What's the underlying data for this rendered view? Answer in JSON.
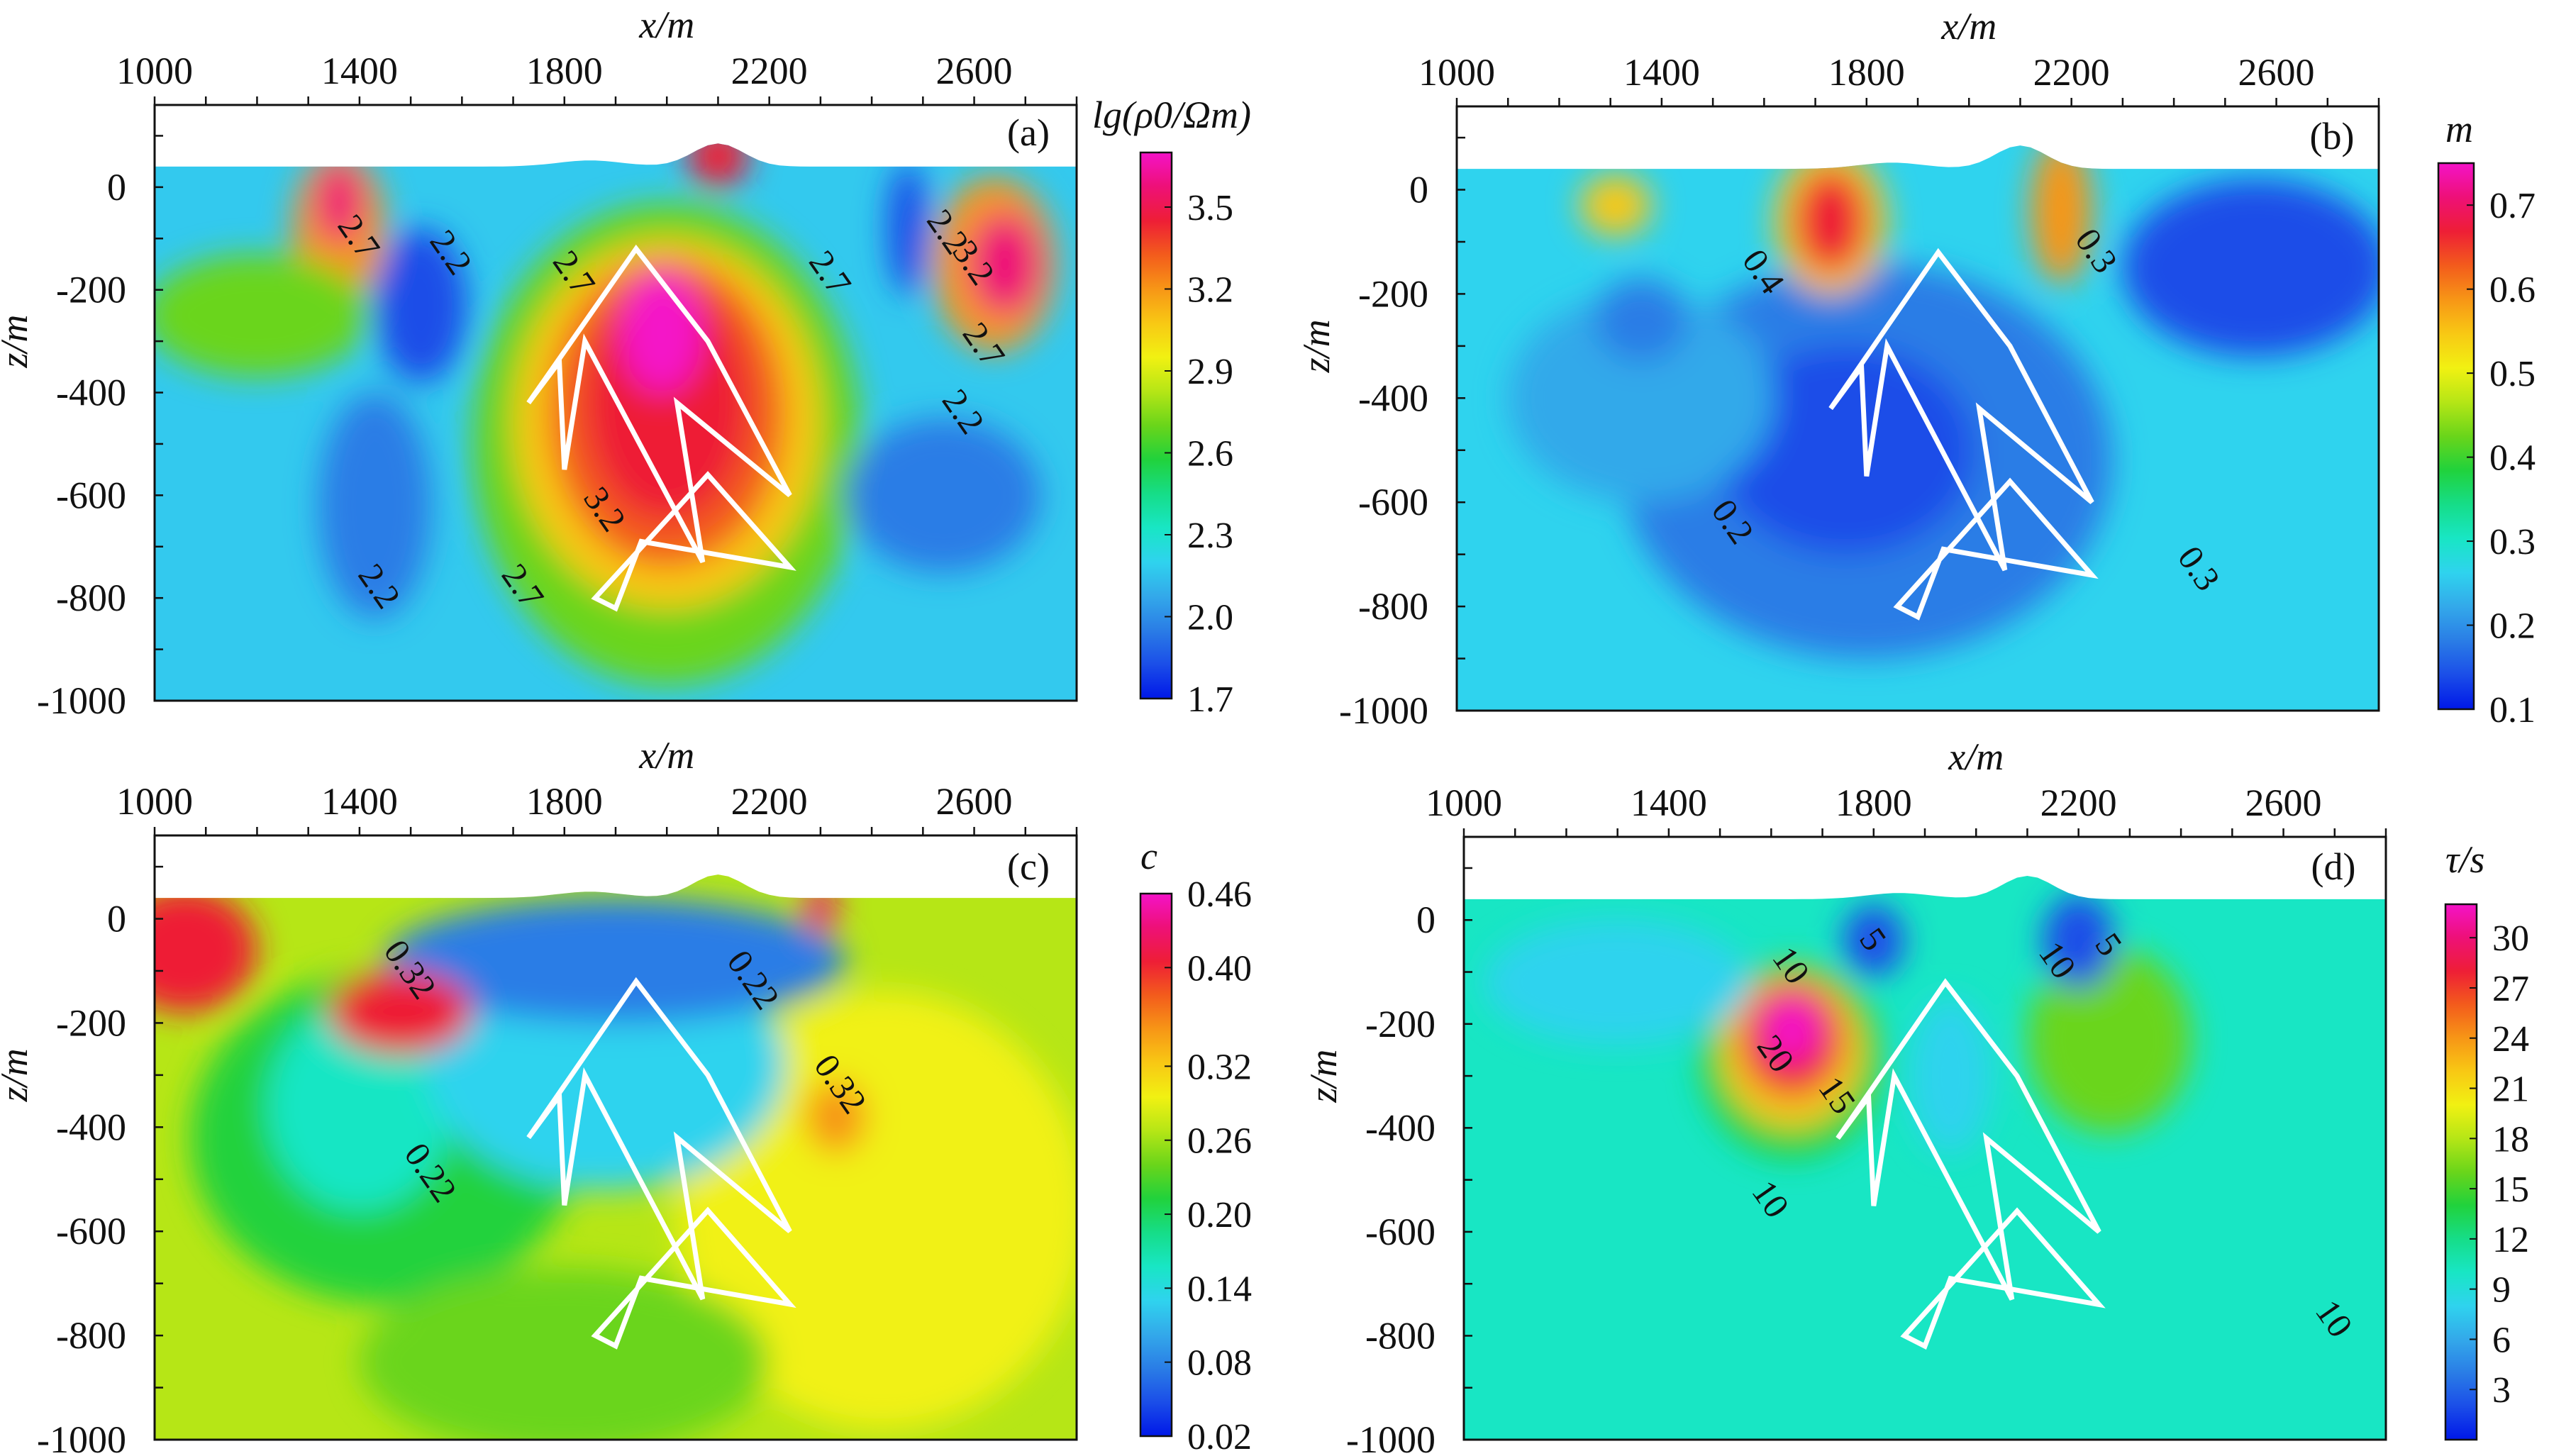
{
  "chart_data": [
    {
      "type": "heatmap",
      "panel": "(a)",
      "xlabel": "x/m",
      "ylabel": "z/m",
      "x_ticks": [
        "1000",
        "1400",
        "1800",
        "2200",
        "2600"
      ],
      "y_ticks": [
        "0",
        "-200",
        "-400",
        "-600",
        "-800",
        "-1000"
      ],
      "xlim": [
        1000,
        2800
      ],
      "ylim": [
        -1000,
        160
      ],
      "colorbar_title": "lg(ρ0/Ωm)",
      "colorbar_ticks": [
        "3.5",
        "3.2",
        "2.9",
        "2.6",
        "2.3",
        "2.0",
        "1.7"
      ],
      "colorbar_range": [
        1.7,
        3.7
      ],
      "contour_labels": [
        {
          "text": "2.7",
          "x": 1380,
          "z": -110
        },
        {
          "text": "2.2",
          "x": 1560,
          "z": -140
        },
        {
          "text": "2.7",
          "x": 1800,
          "z": -180
        },
        {
          "text": "2.7",
          "x": 2300,
          "z": -180
        },
        {
          "text": "2.2",
          "x": 2530,
          "z": -100
        },
        {
          "text": "3.2",
          "x": 2580,
          "z": -160
        },
        {
          "text": "2.7",
          "x": 2600,
          "z": -320
        },
        {
          "text": "2.2",
          "x": 2560,
          "z": -450
        },
        {
          "text": "3.2",
          "x": 1860,
          "z": -640
        },
        {
          "text": "2.7",
          "x": 1700,
          "z": -790
        },
        {
          "text": "2.2",
          "x": 1420,
          "z": -790
        }
      ]
    },
    {
      "type": "heatmap",
      "panel": "(b)",
      "xlabel": "x/m",
      "ylabel": "z/m",
      "x_ticks": [
        "1000",
        "1400",
        "1800",
        "2200",
        "2600"
      ],
      "y_ticks": [
        "0",
        "-200",
        "-400",
        "-600",
        "-800",
        "-1000"
      ],
      "xlim": [
        1000,
        2800
      ],
      "ylim": [
        -1000,
        160
      ],
      "colorbar_title": "m",
      "colorbar_ticks": [
        "0.7",
        "0.6",
        "0.5",
        "0.4",
        "0.3",
        "0.2",
        "0.1"
      ],
      "colorbar_range": [
        0.1,
        0.75
      ],
      "contour_labels": [
        {
          "text": "0.4",
          "x": 1580,
          "z": -170
        },
        {
          "text": "0.3",
          "x": 2230,
          "z": -130
        },
        {
          "text": "0.2",
          "x": 1520,
          "z": -650
        },
        {
          "text": "0.3",
          "x": 2430,
          "z": -740
        }
      ]
    },
    {
      "type": "heatmap",
      "panel": "(c)",
      "xlabel": "x/m",
      "ylabel": "z/m",
      "x_ticks": [
        "1000",
        "1400",
        "1800",
        "2200",
        "2600"
      ],
      "y_ticks": [
        "0",
        "-200",
        "-400",
        "-600",
        "-800",
        "-1000"
      ],
      "xlim": [
        1000,
        2800
      ],
      "ylim": [
        -1000,
        160
      ],
      "colorbar_title": "c",
      "colorbar_ticks": [
        "0.46",
        "0.40",
        "0.32",
        "0.26",
        "0.20",
        "0.14",
        "0.08",
        "0.02"
      ],
      "colorbar_range": [
        0.02,
        0.46
      ],
      "contour_labels": [
        {
          "text": "0.32",
          "x": 1480,
          "z": -110
        },
        {
          "text": "0.22",
          "x": 2150,
          "z": -130
        },
        {
          "text": "0.32",
          "x": 2320,
          "z": -330
        },
        {
          "text": "0.22",
          "x": 1520,
          "z": -500
        }
      ]
    },
    {
      "type": "heatmap",
      "panel": "(d)",
      "xlabel": "x/m",
      "ylabel": "z/m",
      "x_ticks": [
        "1000",
        "1400",
        "1800",
        "2200",
        "2600"
      ],
      "y_ticks": [
        "0",
        "-200",
        "-400",
        "-600",
        "-800",
        "-1000"
      ],
      "xlim": [
        1000,
        2800
      ],
      "ylim": [
        -1000,
        160
      ],
      "colorbar_title": "τ/s",
      "colorbar_ticks": [
        "30",
        "27",
        "24",
        "21",
        "18",
        "15",
        "12",
        "9",
        "6",
        "3"
      ],
      "colorbar_range": [
        0,
        32
      ],
      "contour_labels": [
        {
          "text": "10",
          "x": 1620,
          "z": -100
        },
        {
          "text": "5",
          "x": 1780,
          "z": -50
        },
        {
          "text": "10",
          "x": 2140,
          "z": -90
        },
        {
          "text": "5",
          "x": 2240,
          "z": -60
        },
        {
          "text": "20",
          "x": 1590,
          "z": -270
        },
        {
          "text": "15",
          "x": 1710,
          "z": -350
        },
        {
          "text": "10",
          "x": 1580,
          "z": -550
        },
        {
          "text": "10",
          "x": 2680,
          "z": -780
        }
      ]
    }
  ]
}
